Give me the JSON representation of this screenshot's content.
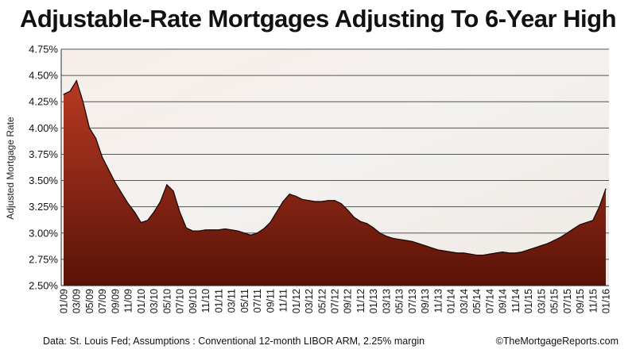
{
  "chart_data": {
    "type": "area",
    "title": "Adjustable-Rate Mortgages Adjusting To 6-Year High",
    "ylabel": "Adjusted Mortgage Rate",
    "xlabel": "",
    "ylim": [
      2.5,
      4.75
    ],
    "yticks": [
      "2.50%",
      "2.75%",
      "3.00%",
      "3.25%",
      "3.50%",
      "3.75%",
      "4.00%",
      "4.25%",
      "4.50%",
      "4.75%"
    ],
    "xticks": [
      "01/09",
      "03/09",
      "05/09",
      "07/09",
      "09/09",
      "11/09",
      "01/10",
      "03/10",
      "05/10",
      "07/10",
      "09/10",
      "11/10",
      "01/11",
      "03/11",
      "05/11",
      "07/11",
      "09/11",
      "11/11",
      "01/12",
      "03/12",
      "05/12",
      "07/12",
      "09/12",
      "11/12",
      "01/13",
      "03/13",
      "05/13",
      "07/13",
      "09/13",
      "11/13",
      "01/14",
      "03/14",
      "05/14",
      "07/14",
      "09/14",
      "11/14",
      "01/15",
      "03/15",
      "05/15",
      "07/15",
      "09/15",
      "11/15",
      "01/16"
    ],
    "grid": true,
    "series": [
      {
        "values": [
          {
            "x": "01/09",
            "y": 4.32
          },
          {
            "x": "02/09",
            "y": 4.35
          },
          {
            "x": "03/09",
            "y": 4.45
          },
          {
            "x": "04/09",
            "y": 4.25
          },
          {
            "x": "05/09",
            "y": 4.0
          },
          {
            "x": "06/09",
            "y": 3.9
          },
          {
            "x": "07/09",
            "y": 3.72
          },
          {
            "x": "08/09",
            "y": 3.6
          },
          {
            "x": "09/09",
            "y": 3.48
          },
          {
            "x": "10/09",
            "y": 3.38
          },
          {
            "x": "11/09",
            "y": 3.28
          },
          {
            "x": "12/09",
            "y": 3.2
          },
          {
            "x": "01/10",
            "y": 3.1
          },
          {
            "x": "02/10",
            "y": 3.12
          },
          {
            "x": "03/10",
            "y": 3.2
          },
          {
            "x": "04/10",
            "y": 3.3
          },
          {
            "x": "05/10",
            "y": 3.46
          },
          {
            "x": "06/10",
            "y": 3.4
          },
          {
            "x": "07/10",
            "y": 3.2
          },
          {
            "x": "08/10",
            "y": 3.05
          },
          {
            "x": "09/10",
            "y": 3.02
          },
          {
            "x": "10/10",
            "y": 3.02
          },
          {
            "x": "11/10",
            "y": 3.03
          },
          {
            "x": "12/10",
            "y": 3.03
          },
          {
            "x": "01/11",
            "y": 3.03
          },
          {
            "x": "02/11",
            "y": 3.04
          },
          {
            "x": "03/11",
            "y": 3.03
          },
          {
            "x": "04/11",
            "y": 3.02
          },
          {
            "x": "05/11",
            "y": 3.0
          },
          {
            "x": "06/11",
            "y": 2.98
          },
          {
            "x": "07/11",
            "y": 3.0
          },
          {
            "x": "08/11",
            "y": 3.04
          },
          {
            "x": "09/11",
            "y": 3.1
          },
          {
            "x": "10/11",
            "y": 3.2
          },
          {
            "x": "11/11",
            "y": 3.3
          },
          {
            "x": "12/11",
            "y": 3.37
          },
          {
            "x": "01/12",
            "y": 3.35
          },
          {
            "x": "02/12",
            "y": 3.32
          },
          {
            "x": "03/12",
            "y": 3.31
          },
          {
            "x": "04/12",
            "y": 3.3
          },
          {
            "x": "05/12",
            "y": 3.3
          },
          {
            "x": "06/12",
            "y": 3.31
          },
          {
            "x": "07/12",
            "y": 3.31
          },
          {
            "x": "08/12",
            "y": 3.28
          },
          {
            "x": "09/12",
            "y": 3.22
          },
          {
            "x": "10/12",
            "y": 3.15
          },
          {
            "x": "11/12",
            "y": 3.11
          },
          {
            "x": "12/12",
            "y": 3.09
          },
          {
            "x": "01/13",
            "y": 3.05
          },
          {
            "x": "02/13",
            "y": 3.0
          },
          {
            "x": "03/13",
            "y": 2.97
          },
          {
            "x": "04/13",
            "y": 2.95
          },
          {
            "x": "05/13",
            "y": 2.94
          },
          {
            "x": "06/13",
            "y": 2.93
          },
          {
            "x": "07/13",
            "y": 2.92
          },
          {
            "x": "08/13",
            "y": 2.9
          },
          {
            "x": "09/13",
            "y": 2.88
          },
          {
            "x": "10/13",
            "y": 2.86
          },
          {
            "x": "11/13",
            "y": 2.84
          },
          {
            "x": "12/13",
            "y": 2.83
          },
          {
            "x": "01/14",
            "y": 2.82
          },
          {
            "x": "02/14",
            "y": 2.81
          },
          {
            "x": "03/14",
            "y": 2.81
          },
          {
            "x": "04/14",
            "y": 2.8
          },
          {
            "x": "05/14",
            "y": 2.79
          },
          {
            "x": "06/14",
            "y": 2.79
          },
          {
            "x": "07/14",
            "y": 2.8
          },
          {
            "x": "08/14",
            "y": 2.81
          },
          {
            "x": "09/14",
            "y": 2.82
          },
          {
            "x": "10/14",
            "y": 2.81
          },
          {
            "x": "11/14",
            "y": 2.81
          },
          {
            "x": "12/14",
            "y": 2.82
          },
          {
            "x": "01/15",
            "y": 2.84
          },
          {
            "x": "02/15",
            "y": 2.86
          },
          {
            "x": "03/15",
            "y": 2.88
          },
          {
            "x": "04/15",
            "y": 2.9
          },
          {
            "x": "05/15",
            "y": 2.93
          },
          {
            "x": "06/15",
            "y": 2.96
          },
          {
            "x": "07/15",
            "y": 3.0
          },
          {
            "x": "08/15",
            "y": 3.04
          },
          {
            "x": "09/15",
            "y": 3.08
          },
          {
            "x": "10/15",
            "y": 3.1
          },
          {
            "x": "11/15",
            "y": 3.12
          },
          {
            "x": "12/15",
            "y": 3.25
          },
          {
            "x": "01/16",
            "y": 3.42
          }
        ]
      }
    ],
    "colors": {
      "fill_top": "#b83a22",
      "fill_bottom": "#5a1208",
      "line": "#1a0a06",
      "grid": "#555555"
    }
  },
  "footer": {
    "source": "Data: St. Louis Fed; Assumptions : Conventional 12-month LIBOR ARM, 2.25% margin",
    "copyright": "©TheMortgageReports.com"
  }
}
